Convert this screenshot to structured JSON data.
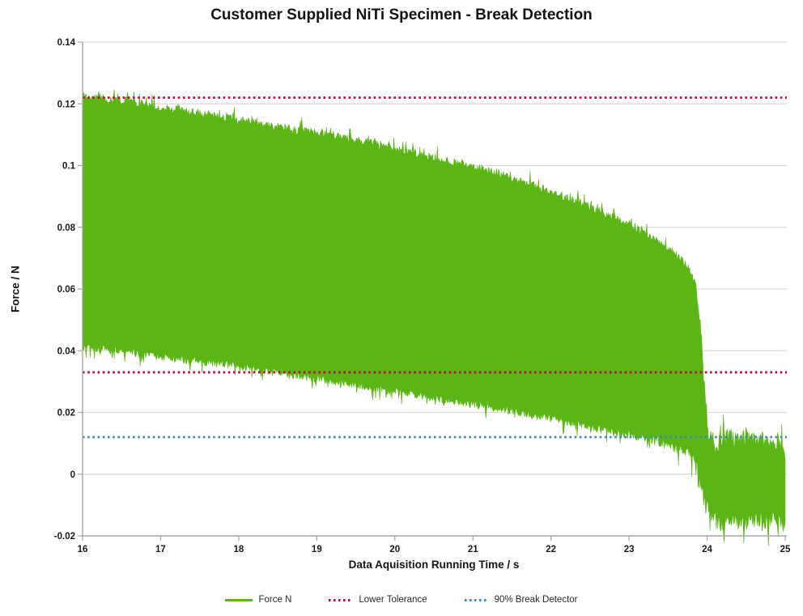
{
  "chart_data": {
    "type": "area",
    "title": "Customer Supplied NiTi Specimen - Break Detection",
    "xlabel": "Data Aquisition Running Time / s",
    "ylabel": "Force / N",
    "xlim": [
      16,
      25
    ],
    "ylim": [
      -0.02,
      0.14
    ],
    "grid": "horizontal light-gray lines at every 0.02 N",
    "x_ticks": [
      {
        "value": 16,
        "label": "16"
      },
      {
        "value": 17,
        "label": "17"
      },
      {
        "value": 18,
        "label": "18"
      },
      {
        "value": 19,
        "label": "19"
      },
      {
        "value": 20,
        "label": "20"
      },
      {
        "value": 21,
        "label": "21"
      },
      {
        "value": 22,
        "label": "22"
      },
      {
        "value": 23,
        "label": "23"
      },
      {
        "value": 24,
        "label": "24"
      },
      {
        "value": 25,
        "label": "25"
      }
    ],
    "y_ticks": [
      {
        "value": 0.14,
        "label": "0.14"
      },
      {
        "value": 0.12,
        "label": "0.12"
      },
      {
        "value": 0.1,
        "label": "0.1"
      },
      {
        "value": 0.08,
        "label": "0.08"
      },
      {
        "value": 0.06,
        "label": "0.06"
      },
      {
        "value": 0.04,
        "label": "0.04"
      },
      {
        "value": 0.02,
        "label": "0.02"
      },
      {
        "value": 0.0,
        "label": "0"
      },
      {
        "value": -0.02,
        "label": "-0.02"
      }
    ],
    "series": [
      {
        "name": "Force N",
        "style": "dense oscillating signal rendered as solid envelope fill",
        "color": "#5bb615",
        "top_envelope": [
          [
            16,
            0.1225
          ],
          [
            16.2,
            0.1222
          ],
          [
            16.4,
            0.1213
          ],
          [
            16.6,
            0.1208
          ],
          [
            16.8,
            0.1198
          ],
          [
            17,
            0.119
          ],
          [
            17.3,
            0.1178
          ],
          [
            17.6,
            0.1165
          ],
          [
            18,
            0.1148
          ],
          [
            18.4,
            0.113
          ],
          [
            18.8,
            0.1113
          ],
          [
            19.2,
            0.1098
          ],
          [
            19.6,
            0.1078
          ],
          [
            20,
            0.1055
          ],
          [
            20.4,
            0.1032
          ],
          [
            20.8,
            0.1008
          ],
          [
            21.2,
            0.0985
          ],
          [
            21.6,
            0.0952
          ],
          [
            22,
            0.0915
          ],
          [
            22.4,
            0.0877
          ],
          [
            22.8,
            0.0832
          ],
          [
            23.1,
            0.0795
          ],
          [
            23.4,
            0.0752
          ],
          [
            23.6,
            0.0712
          ],
          [
            23.75,
            0.0672
          ],
          [
            23.85,
            0.062
          ],
          [
            23.9,
            0.052
          ],
          [
            23.94,
            0.038
          ],
          [
            23.98,
            0.023
          ],
          [
            24.02,
            0.013
          ],
          [
            24.1,
            0.0095
          ],
          [
            24.2,
            0.011
          ],
          [
            24.3,
            0.0125
          ],
          [
            24.4,
            0.0105
          ],
          [
            24.5,
            0.013
          ],
          [
            24.6,
            0.0105
          ],
          [
            24.7,
            0.012
          ],
          [
            24.8,
            0.0095
          ],
          [
            24.9,
            0.011
          ],
          [
            25,
            0.006
          ]
        ],
        "bottom_envelope": [
          [
            16,
            0.0415
          ],
          [
            16.4,
            0.04
          ],
          [
            16.8,
            0.0388
          ],
          [
            17.2,
            0.0375
          ],
          [
            17.6,
            0.0362
          ],
          [
            18,
            0.035
          ],
          [
            18.5,
            0.033
          ],
          [
            19,
            0.031
          ],
          [
            19.5,
            0.029
          ],
          [
            20,
            0.0269
          ],
          [
            20.5,
            0.0248
          ],
          [
            21,
            0.0227
          ],
          [
            21.5,
            0.0204
          ],
          [
            22,
            0.018
          ],
          [
            22.5,
            0.0154
          ],
          [
            23,
            0.0128
          ],
          [
            23.3,
            0.0112
          ],
          [
            23.6,
            0.0088
          ],
          [
            23.8,
            0.0058
          ],
          [
            23.88,
            0.002
          ],
          [
            23.93,
            -0.004
          ],
          [
            23.98,
            -0.01
          ],
          [
            24.05,
            -0.014
          ],
          [
            24.15,
            -0.0158
          ],
          [
            24.3,
            -0.015
          ],
          [
            24.45,
            -0.0165
          ],
          [
            24.6,
            -0.0145
          ],
          [
            24.75,
            -0.016
          ],
          [
            24.9,
            -0.015
          ],
          [
            25,
            -0.016
          ]
        ],
        "notes": "specimen breaks at ~23.9 s; post-break noise band ~ -0.016 to +0.013 N"
      }
    ],
    "reference_lines": [
      {
        "name": "Lower Tolerance",
        "color": "#c4063f",
        "style": "dotted",
        "values": [
          0.122,
          0.033
        ]
      },
      {
        "name": "90% Break Detector",
        "color": "#3d87c2",
        "style": "dotted",
        "values": [
          0.012
        ]
      }
    ],
    "legend": {
      "position": "bottom",
      "entries": [
        {
          "label": "Force N",
          "color": "#5bb615",
          "style": "solid"
        },
        {
          "label": "Lower Tolerance",
          "color": "#c4063f",
          "style": "dotted"
        },
        {
          "label": "90% Break Detector",
          "color": "#3d87c2",
          "style": "dotted"
        }
      ]
    },
    "colors": {
      "signal_green": "#5bb615",
      "tolerance_red": "#c4063f",
      "break_detector_blue": "#3d87c2",
      "gridline": "#d9d9d9",
      "axis": "#a6a6a6",
      "text": "#1a1a1a"
    }
  }
}
